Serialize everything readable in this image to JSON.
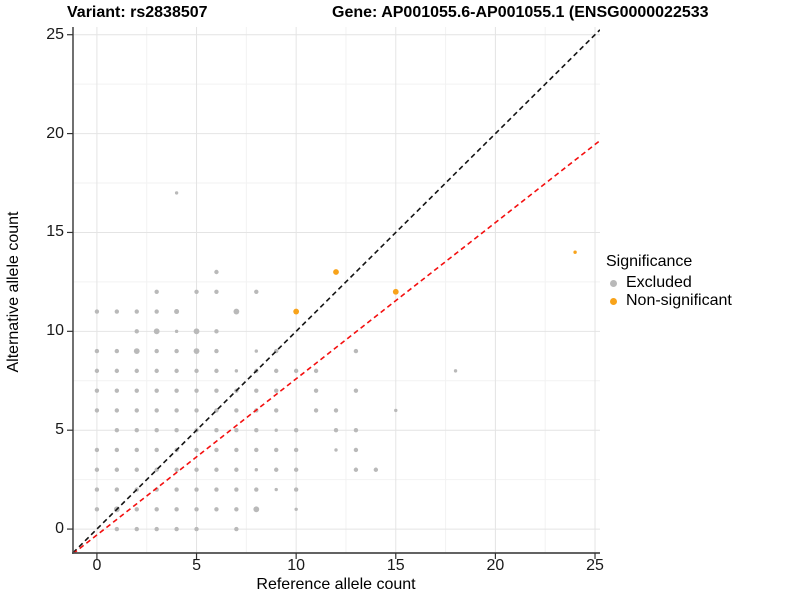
{
  "title_left": "Variant: rs2838507",
  "title_right": "Gene: AP001055.6-AP001055.1 (ENSG0000022533",
  "axes": {
    "x_label": "Reference allele count",
    "y_label": "Alternative allele count"
  },
  "legend": {
    "title": "Significance",
    "items": [
      {
        "label": "Excluded",
        "color": "#b9b9b9"
      },
      {
        "label": "Non-significant",
        "color": "#f8a31a"
      }
    ]
  },
  "colors": {
    "excluded": "#b9b9b9",
    "non_significant": "#f8a31a",
    "identity_line": "#141414",
    "fit_line": "#f40f0f",
    "axis_line": "#4d4d4d",
    "grid_major": "#e4e4e4",
    "grid_minor": "#f2f2f2",
    "tick": "#333333"
  },
  "chart_data": {
    "type": "scatter",
    "title": "Variant: rs2838507 / Gene: AP001055.6-AP001055.1 (ENSG0000022533",
    "xlabel": "Reference allele count",
    "ylabel": "Alternative allele count",
    "xlim": [
      -1.2,
      25.25
    ],
    "ylim": [
      -1.21,
      25.39
    ],
    "x_ticks": [
      0,
      5,
      10,
      15,
      20,
      25
    ],
    "y_ticks": [
      0,
      5,
      10,
      15,
      20,
      25
    ],
    "grid": {
      "major": [
        0,
        5,
        10,
        15,
        20,
        25
      ],
      "minor": [
        2.5,
        7.5,
        12.5,
        17.5,
        22.5
      ],
      "on": true
    },
    "legend_position": "right",
    "series": [
      {
        "name": "Excluded",
        "color": "#b9b9b9",
        "points": [
          [
            0,
            1,
            2.2
          ],
          [
            0,
            2,
            2.2
          ],
          [
            0,
            3,
            2.2
          ],
          [
            0,
            4,
            2.2
          ],
          [
            0,
            6,
            2.2
          ],
          [
            0,
            7,
            2.2
          ],
          [
            0,
            8,
            2.2
          ],
          [
            0,
            9,
            2.2
          ],
          [
            0,
            11,
            2.2
          ],
          [
            1,
            0,
            2.2
          ],
          [
            1,
            1,
            2.9
          ],
          [
            1,
            2,
            2.2
          ],
          [
            1,
            3,
            2.2
          ],
          [
            1,
            4,
            2.2
          ],
          [
            1,
            5,
            2.2
          ],
          [
            1,
            6,
            2.2
          ],
          [
            1,
            7,
            2.2
          ],
          [
            1,
            8,
            2.2
          ],
          [
            1,
            9,
            2.2
          ],
          [
            1,
            11,
            2.2
          ],
          [
            2,
            0,
            2.2
          ],
          [
            2,
            1,
            2.2
          ],
          [
            2,
            2,
            2.2
          ],
          [
            2,
            3,
            2.2
          ],
          [
            2,
            4,
            2.2
          ],
          [
            2,
            5,
            2.2
          ],
          [
            2,
            6,
            2.2
          ],
          [
            2,
            7,
            2.2
          ],
          [
            2,
            8,
            2.2
          ],
          [
            2,
            9,
            2.9
          ],
          [
            2,
            10,
            2.2
          ],
          [
            2,
            11,
            2.2
          ],
          [
            3,
            0,
            2.2
          ],
          [
            3,
            1,
            2.2
          ],
          [
            3,
            2,
            2.2
          ],
          [
            3,
            3,
            2.2
          ],
          [
            3,
            4,
            2.2
          ],
          [
            3,
            5,
            2.2
          ],
          [
            3,
            6,
            2.2
          ],
          [
            3,
            7,
            2.2
          ],
          [
            3,
            8,
            2.2
          ],
          [
            3,
            9,
            2.2
          ],
          [
            3,
            10,
            2.9
          ],
          [
            3,
            11,
            2.2
          ],
          [
            3,
            12,
            2.2
          ],
          [
            4,
            0,
            2.2
          ],
          [
            4,
            1,
            2.2
          ],
          [
            4,
            2,
            2.2
          ],
          [
            4,
            3,
            2.2
          ],
          [
            4,
            4,
            2.2
          ],
          [
            4,
            5,
            2.2
          ],
          [
            4,
            6,
            2.2
          ],
          [
            4,
            7,
            2.2
          ],
          [
            4,
            8,
            2.2
          ],
          [
            4,
            9,
            2.2
          ],
          [
            4,
            10,
            1.7
          ],
          [
            4,
            11,
            2.5
          ],
          [
            4,
            17,
            1.7
          ],
          [
            5,
            0,
            2.2
          ],
          [
            5,
            1,
            2.2
          ],
          [
            5,
            2,
            2.2
          ],
          [
            5,
            3,
            2.2
          ],
          [
            5,
            4,
            2.2
          ],
          [
            5,
            5,
            2.2
          ],
          [
            5,
            6,
            2.2
          ],
          [
            5,
            7,
            2.2
          ],
          [
            5,
            8,
            2.2
          ],
          [
            5,
            9,
            2.9
          ],
          [
            5,
            10,
            2.9
          ],
          [
            5,
            12,
            2.2
          ],
          [
            6,
            1,
            2.2
          ],
          [
            6,
            2,
            2.2
          ],
          [
            6,
            3,
            2.2
          ],
          [
            6,
            4,
            2.2
          ],
          [
            6,
            5,
            2.2
          ],
          [
            6,
            6,
            2.2
          ],
          [
            6,
            7,
            2.2
          ],
          [
            6,
            8,
            2.2
          ],
          [
            6,
            9,
            2.2
          ],
          [
            6,
            10,
            2.2
          ],
          [
            6,
            12,
            2.2
          ],
          [
            6,
            13,
            2.2
          ],
          [
            7,
            0,
            2.2
          ],
          [
            7,
            1,
            2.2
          ],
          [
            7,
            2,
            2.2
          ],
          [
            7,
            3,
            2.2
          ],
          [
            7,
            4,
            2.2
          ],
          [
            7,
            5,
            2.2
          ],
          [
            7,
            6,
            2.2
          ],
          [
            7,
            7,
            2.2
          ],
          [
            7,
            8,
            1.7
          ],
          [
            7,
            11,
            2.9
          ],
          [
            8,
            1,
            2.9
          ],
          [
            8,
            2,
            2.2
          ],
          [
            8,
            3,
            1.7
          ],
          [
            8,
            4,
            2.2
          ],
          [
            8,
            5,
            2.2
          ],
          [
            8,
            6,
            2.2
          ],
          [
            8,
            7,
            2.2
          ],
          [
            8,
            8,
            2.2
          ],
          [
            8,
            9,
            1.7
          ],
          [
            8,
            12,
            2.2
          ],
          [
            9,
            2,
            1.7
          ],
          [
            9,
            3,
            2.2
          ],
          [
            9,
            4,
            2.2
          ],
          [
            9,
            5,
            1.7
          ],
          [
            9,
            6,
            2.2
          ],
          [
            9,
            7,
            2.2
          ],
          [
            9,
            8,
            2.2
          ],
          [
            9,
            9,
            2.2
          ],
          [
            10,
            1,
            1.7
          ],
          [
            10,
            2,
            2.2
          ],
          [
            10,
            3,
            2.2
          ],
          [
            10,
            4,
            2.2
          ],
          [
            10,
            5,
            2.2
          ],
          [
            10,
            8,
            2.2
          ],
          [
            11,
            6,
            2.2
          ],
          [
            11,
            7,
            2.2
          ],
          [
            11,
            8,
            2.2
          ],
          [
            12,
            4,
            1.7
          ],
          [
            12,
            5,
            2.2
          ],
          [
            12,
            6,
            2.2
          ],
          [
            13,
            3,
            2.2
          ],
          [
            13,
            4,
            2.2
          ],
          [
            13,
            5,
            2.2
          ],
          [
            13,
            7,
            2.2
          ],
          [
            13,
            9,
            2.2
          ],
          [
            14,
            3,
            2.2
          ],
          [
            15,
            6,
            1.7
          ],
          [
            18,
            8,
            1.7
          ]
        ]
      },
      {
        "name": "Non-significant",
        "color": "#f8a31a",
        "points": [
          [
            10,
            11,
            2.9
          ],
          [
            12,
            13,
            2.9
          ],
          [
            15,
            12,
            2.9
          ],
          [
            24,
            14,
            1.7
          ]
        ]
      }
    ],
    "lines": [
      {
        "name": "identity",
        "slope": 1.0,
        "intercept": 0.0,
        "color": "#141414",
        "style": "dashed"
      },
      {
        "name": "fit",
        "slope": 0.79,
        "intercept": -0.3,
        "color": "#f40f0f",
        "style": "dashed"
      }
    ]
  }
}
